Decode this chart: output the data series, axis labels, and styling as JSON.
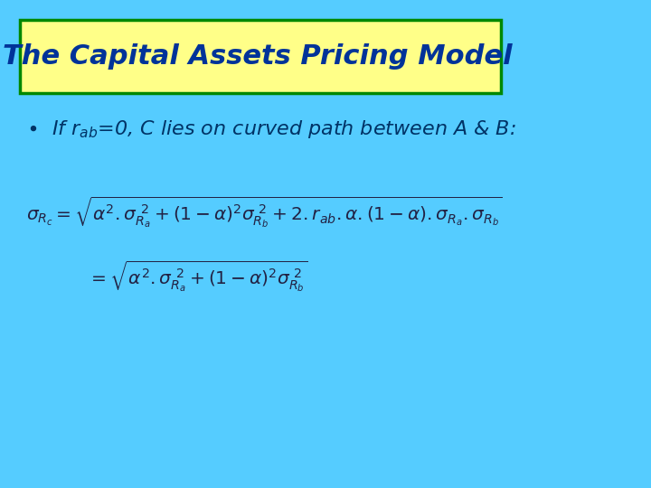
{
  "bg_color": "#55CCFF",
  "title_box_color": "#FFFF88",
  "title_box_edge_color": "#008800",
  "title_text": "The Capital Assets Pricing Model",
  "title_font_color": "#003399",
  "bullet_font_color": "#003366",
  "formula_color": "#222244",
  "fig_width": 7.2,
  "fig_height": 5.4,
  "dpi": 100
}
